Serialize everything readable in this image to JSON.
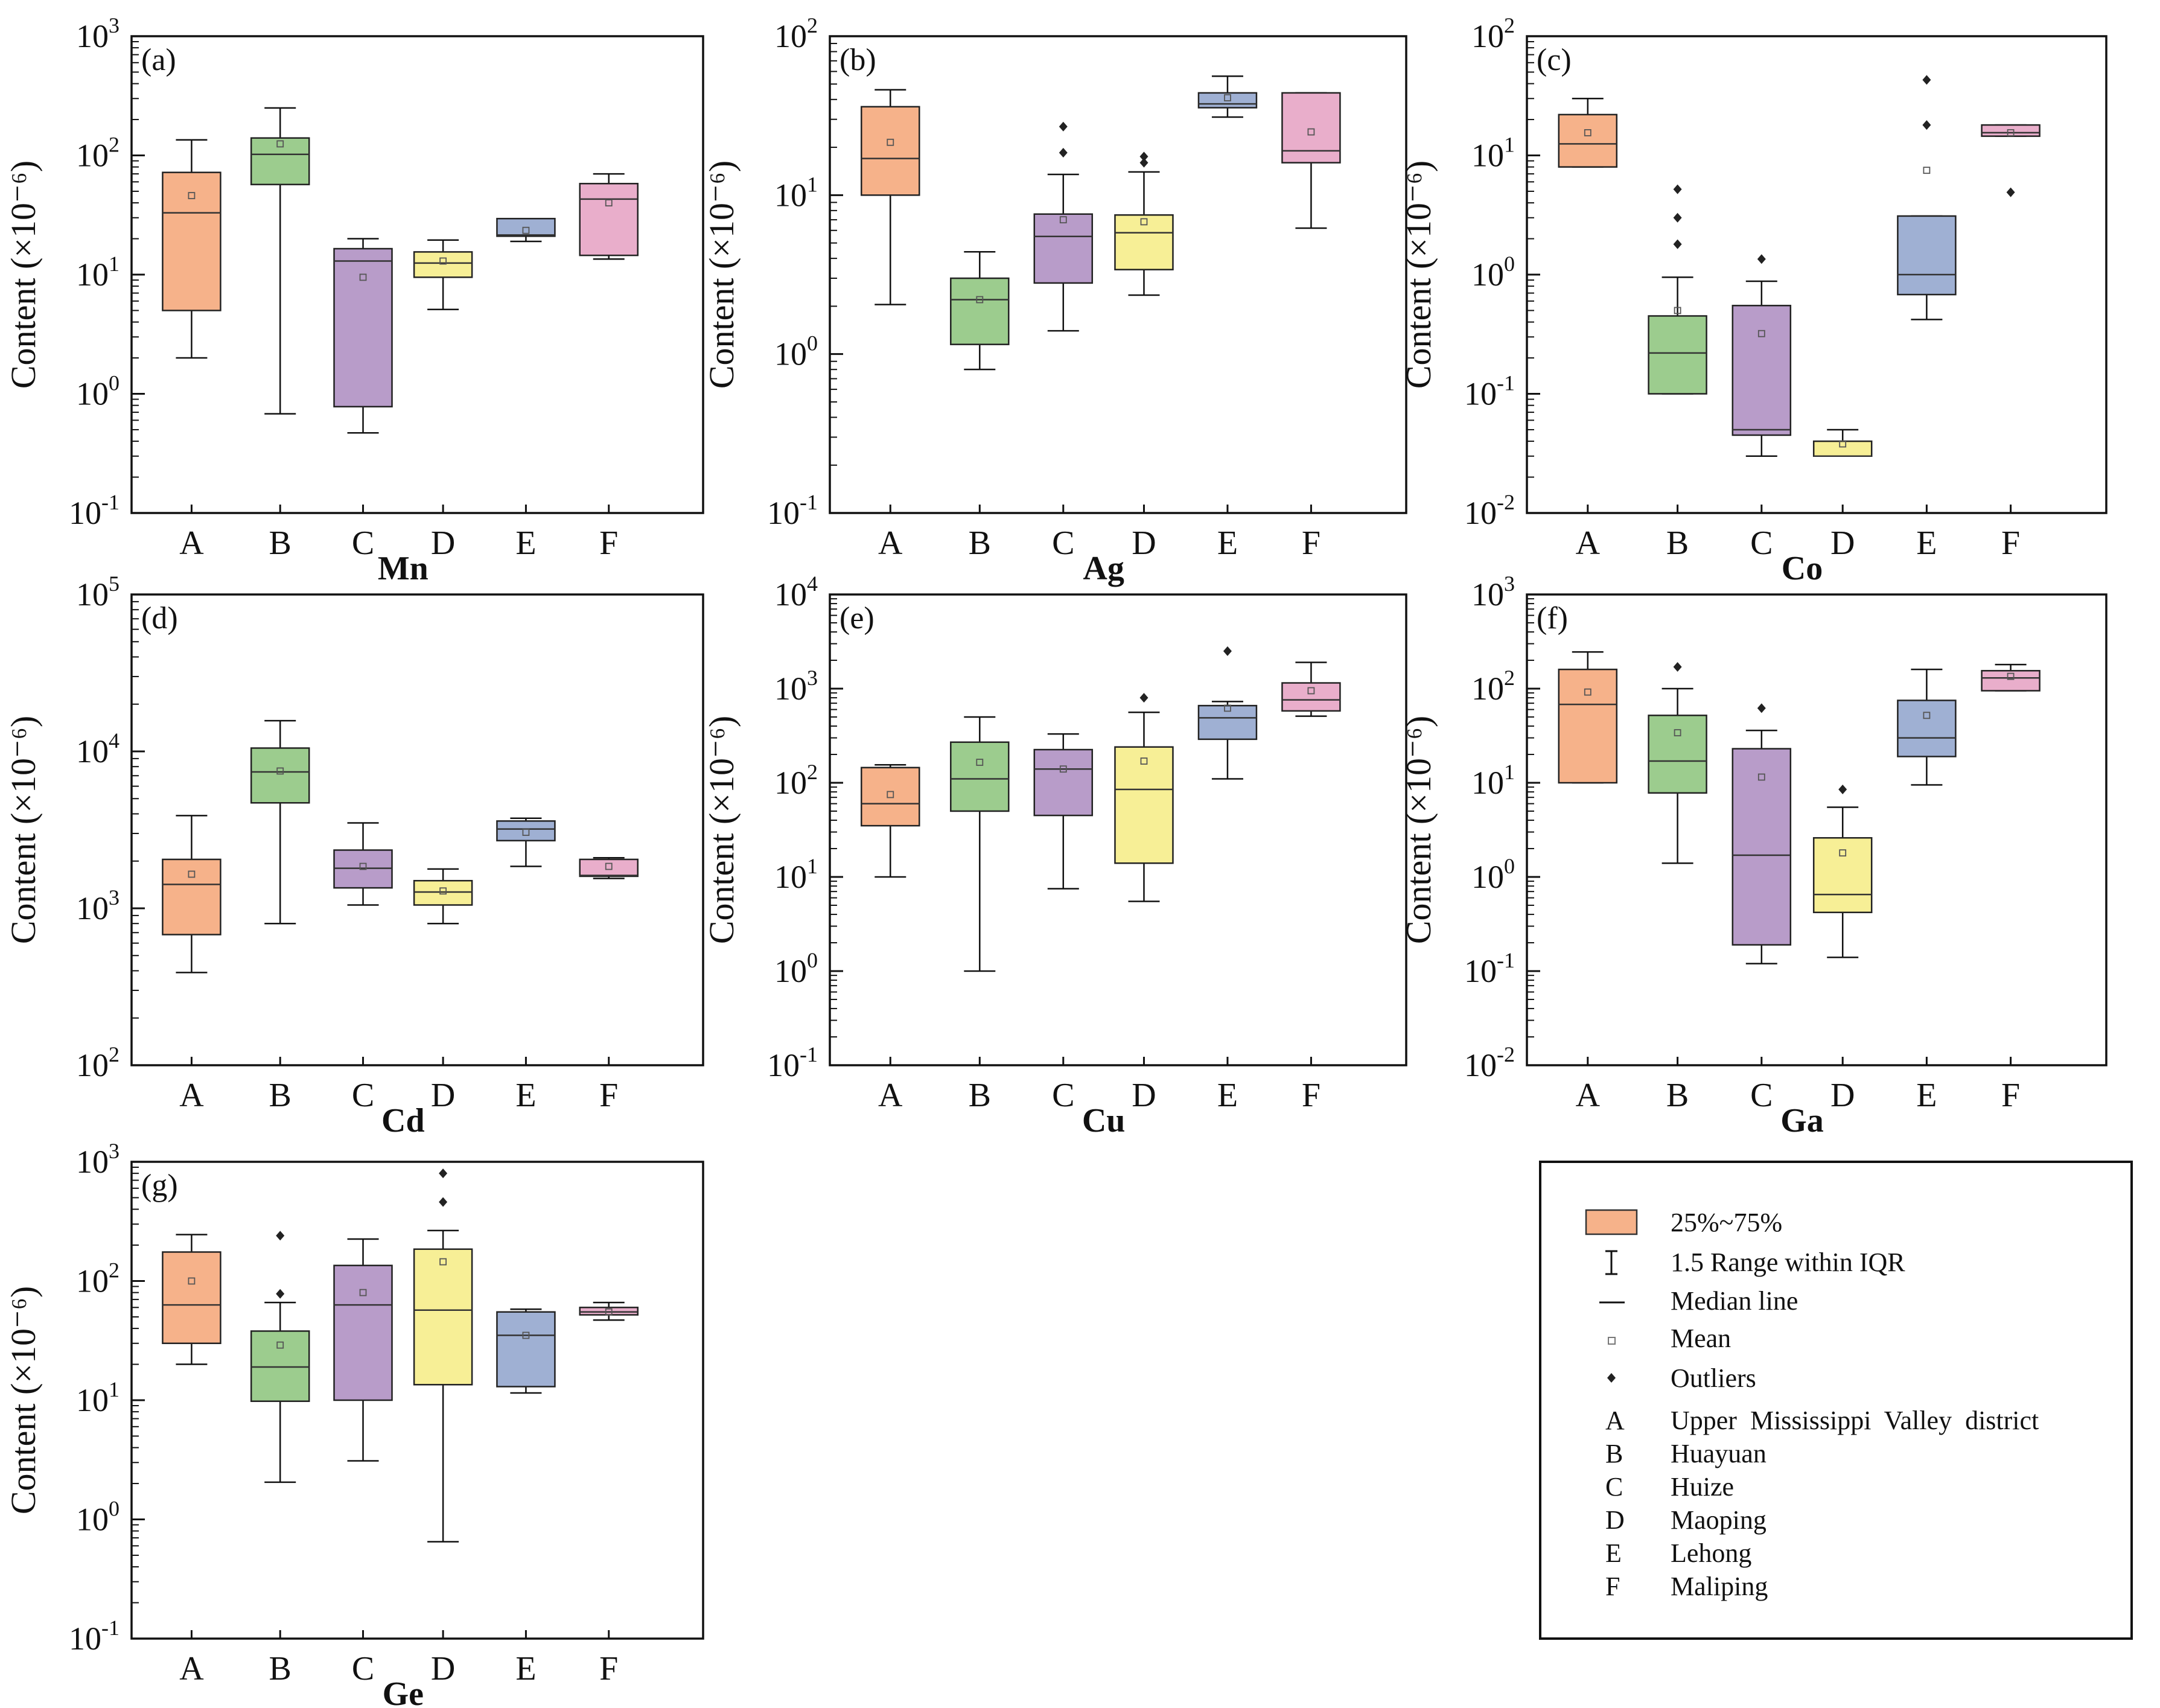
{
  "chart_data": [
    {
      "type": "box",
      "panel_label": "(a)",
      "element": "Mn",
      "ylabel": "Content (×10⁻⁶)",
      "yscale": "log",
      "ylim": [
        0.1,
        1000
      ],
      "y_ticks": [
        {
          "base": "10",
          "exp": "3",
          "value": 1000
        },
        {
          "base": "10",
          "exp": "2",
          "value": 100
        },
        {
          "base": "10",
          "exp": "1",
          "value": 10
        },
        {
          "base": "10",
          "exp": "0",
          "value": 1
        },
        {
          "base": "10",
          "exp": "-1",
          "value": 0.1
        }
      ],
      "categories": [
        "A",
        "B",
        "C",
        "D",
        "E",
        "F"
      ],
      "boxes": [
        {
          "cat": "A",
          "whisker_low": 2.0,
          "q1": 5.0,
          "median": 33,
          "q3": 72,
          "whisker_high": 135,
          "mean": 46,
          "outliers": []
        },
        {
          "cat": "B",
          "whisker_low": 0.68,
          "q1": 57,
          "median": 102,
          "q3": 140,
          "whisker_high": 250,
          "mean": 125,
          "outliers": []
        },
        {
          "cat": "C",
          "whisker_low": 0.47,
          "q1": 0.78,
          "median": 13,
          "q3": 16.5,
          "whisker_high": 20,
          "mean": 9.5,
          "outliers": []
        },
        {
          "cat": "D",
          "whisker_low": 5.1,
          "q1": 9.5,
          "median": 12.5,
          "q3": 15.5,
          "whisker_high": 19.5,
          "mean": 13,
          "outliers": []
        },
        {
          "cat": "E",
          "whisker_low": 19,
          "q1": 21,
          "median": 21.5,
          "q3": 29.5,
          "whisker_high": 29.5,
          "mean": 23.5,
          "outliers": []
        },
        {
          "cat": "F",
          "whisker_low": 13.5,
          "q1": 14.5,
          "median": 43,
          "q3": 58,
          "whisker_high": 70,
          "mean": 40,
          "outliers": []
        }
      ]
    },
    {
      "type": "box",
      "panel_label": "(b)",
      "element": "Ag",
      "ylabel": "Content (×10⁻⁶)",
      "yscale": "log",
      "ylim": [
        0.1,
        100
      ],
      "y_ticks": [
        {
          "base": "10",
          "exp": "2",
          "value": 100
        },
        {
          "base": "10",
          "exp": "1",
          "value": 10
        },
        {
          "base": "10",
          "exp": "0",
          "value": 1
        },
        {
          "base": "10",
          "exp": "-1",
          "value": 0.1
        }
      ],
      "categories": [
        "A",
        "B",
        "C",
        "D",
        "E",
        "F"
      ],
      "boxes": [
        {
          "cat": "A",
          "whisker_low": 2.05,
          "q1": 10,
          "median": 17,
          "q3": 36,
          "whisker_high": 46,
          "mean": 21.5,
          "outliers": []
        },
        {
          "cat": "B",
          "whisker_low": 0.8,
          "q1": 1.15,
          "median": 2.2,
          "q3": 3.0,
          "whisker_high": 4.4,
          "mean": 2.2,
          "outliers": []
        },
        {
          "cat": "C",
          "whisker_low": 1.4,
          "q1": 2.8,
          "median": 5.5,
          "q3": 7.6,
          "whisker_high": 13.5,
          "mean": 7.0,
          "outliers": [
            18.5,
            27
          ]
        },
        {
          "cat": "D",
          "whisker_low": 2.35,
          "q1": 3.4,
          "median": 5.8,
          "q3": 7.5,
          "whisker_high": 14,
          "mean": 6.8,
          "outliers": [
            16,
            17.5
          ]
        },
        {
          "cat": "E",
          "whisker_low": 31,
          "q1": 35.5,
          "median": 37.5,
          "q3": 44,
          "whisker_high": 56,
          "mean": 41,
          "outliers": []
        },
        {
          "cat": "F",
          "whisker_low": 6.2,
          "q1": 16,
          "median": 19,
          "q3": 44,
          "whisker_high": 44,
          "mean": 25,
          "outliers": []
        }
      ]
    },
    {
      "type": "box",
      "panel_label": "(c)",
      "element": "Co",
      "ylabel": "Content (×10⁻⁶)",
      "yscale": "log",
      "ylim": [
        0.01,
        100
      ],
      "y_ticks": [
        {
          "base": "10",
          "exp": "2",
          "value": 100
        },
        {
          "base": "10",
          "exp": "1",
          "value": 10
        },
        {
          "base": "10",
          "exp": "0",
          "value": 1
        },
        {
          "base": "10",
          "exp": "-1",
          "value": 0.1
        },
        {
          "base": "10",
          "exp": "-2",
          "value": 0.01
        }
      ],
      "categories": [
        "A",
        "B",
        "C",
        "D",
        "E",
        "F"
      ],
      "boxes": [
        {
          "cat": "A",
          "whisker_low": 8.0,
          "q1": 8.0,
          "median": 12.5,
          "q3": 22,
          "whisker_high": 30,
          "mean": 15.5,
          "outliers": []
        },
        {
          "cat": "B",
          "whisker_low": 0.1,
          "q1": 0.1,
          "median": 0.22,
          "q3": 0.45,
          "whisker_high": 0.95,
          "mean": 0.5,
          "outliers": [
            1.8,
            3.0,
            5.2
          ]
        },
        {
          "cat": "C",
          "whisker_low": 0.03,
          "q1": 0.045,
          "median": 0.05,
          "q3": 0.55,
          "whisker_high": 0.88,
          "mean": 0.32,
          "outliers": [
            1.35
          ]
        },
        {
          "cat": "D",
          "whisker_low": 0.03,
          "q1": 0.03,
          "median": 0.03,
          "q3": 0.04,
          "whisker_high": 0.05,
          "mean": 0.038,
          "outliers": []
        },
        {
          "cat": "E",
          "whisker_low": 0.42,
          "q1": 0.68,
          "median": 1.0,
          "q3": 3.1,
          "whisker_high": 3.1,
          "mean": 7.5,
          "outliers": [
            18,
            43
          ]
        },
        {
          "cat": "F",
          "whisker_low": 14.5,
          "q1": 14.5,
          "median": 15.5,
          "q3": 18,
          "whisker_high": 18,
          "mean": 15.5,
          "outliers": [
            4.9
          ]
        }
      ]
    },
    {
      "type": "box",
      "panel_label": "(d)",
      "element": "Cd",
      "ylabel": "Content (×10⁻⁶)",
      "yscale": "log",
      "ylim": [
        100,
        100000
      ],
      "y_ticks": [
        {
          "base": "10",
          "exp": "5",
          "value": 100000
        },
        {
          "base": "10",
          "exp": "4",
          "value": 10000
        },
        {
          "base": "10",
          "exp": "3",
          "value": 1000
        },
        {
          "base": "10",
          "exp": "2",
          "value": 100
        }
      ],
      "categories": [
        "A",
        "B",
        "C",
        "D",
        "E",
        "F"
      ],
      "boxes": [
        {
          "cat": "A",
          "whisker_low": 390,
          "q1": 680,
          "median": 1420,
          "q3": 2050,
          "whisker_high": 3900,
          "mean": 1650,
          "outliers": []
        },
        {
          "cat": "B",
          "whisker_low": 800,
          "q1": 4700,
          "median": 7400,
          "q3": 10500,
          "whisker_high": 15700,
          "mean": 7500,
          "outliers": []
        },
        {
          "cat": "C",
          "whisker_low": 1050,
          "q1": 1350,
          "median": 1800,
          "q3": 2350,
          "whisker_high": 3500,
          "mean": 1850,
          "outliers": []
        },
        {
          "cat": "D",
          "whisker_low": 800,
          "q1": 1050,
          "median": 1270,
          "q3": 1500,
          "whisker_high": 1780,
          "mean": 1290,
          "outliers": []
        },
        {
          "cat": "E",
          "whisker_low": 1850,
          "q1": 2700,
          "median": 3200,
          "q3": 3600,
          "whisker_high": 3750,
          "mean": 3050,
          "outliers": []
        },
        {
          "cat": "F",
          "whisker_low": 1550,
          "q1": 1600,
          "median": 1620,
          "q3": 2050,
          "whisker_high": 2100,
          "mean": 1850,
          "outliers": []
        }
      ]
    },
    {
      "type": "box",
      "panel_label": "(e)",
      "element": "Cu",
      "ylabel": "Content (×10⁻⁶)",
      "yscale": "log",
      "ylim": [
        0.1,
        10000
      ],
      "y_ticks": [
        {
          "base": "10",
          "exp": "4",
          "value": 10000
        },
        {
          "base": "10",
          "exp": "3",
          "value": 1000
        },
        {
          "base": "10",
          "exp": "2",
          "value": 100
        },
        {
          "base": "10",
          "exp": "1",
          "value": 10
        },
        {
          "base": "10",
          "exp": "0",
          "value": 1
        },
        {
          "base": "10",
          "exp": "-1",
          "value": 0.1
        }
      ],
      "categories": [
        "A",
        "B",
        "C",
        "D",
        "E",
        "F"
      ],
      "boxes": [
        {
          "cat": "A",
          "whisker_low": 10,
          "q1": 35,
          "median": 60,
          "q3": 145,
          "whisker_high": 155,
          "mean": 75,
          "outliers": []
        },
        {
          "cat": "B",
          "whisker_low": 1.0,
          "q1": 50,
          "median": 110,
          "q3": 270,
          "whisker_high": 500,
          "mean": 165,
          "outliers": []
        },
        {
          "cat": "C",
          "whisker_low": 7.5,
          "q1": 45,
          "median": 140,
          "q3": 225,
          "whisker_high": 330,
          "mean": 140,
          "outliers": []
        },
        {
          "cat": "D",
          "whisker_low": 5.5,
          "q1": 14,
          "median": 85,
          "q3": 240,
          "whisker_high": 560,
          "mean": 170,
          "outliers": [
            800
          ]
        },
        {
          "cat": "E",
          "whisker_low": 110,
          "q1": 290,
          "median": 490,
          "q3": 660,
          "whisker_high": 730,
          "mean": 620,
          "outliers": [
            2500
          ]
        },
        {
          "cat": "F",
          "whisker_low": 510,
          "q1": 580,
          "median": 760,
          "q3": 1150,
          "whisker_high": 1900,
          "mean": 950,
          "outliers": []
        }
      ]
    },
    {
      "type": "box",
      "panel_label": "(f)",
      "element": "Ga",
      "ylabel": "Content (×10⁻⁶)",
      "yscale": "log",
      "ylim": [
        0.01,
        1000
      ],
      "y_ticks": [
        {
          "base": "10",
          "exp": "3",
          "value": 1000
        },
        {
          "base": "10",
          "exp": "2",
          "value": 100
        },
        {
          "base": "10",
          "exp": "1",
          "value": 10
        },
        {
          "base": "10",
          "exp": "0",
          "value": 1
        },
        {
          "base": "10",
          "exp": "-1",
          "value": 0.1
        },
        {
          "base": "10",
          "exp": "-2",
          "value": 0.01
        }
      ],
      "categories": [
        "A",
        "B",
        "C",
        "D",
        "E",
        "F"
      ],
      "boxes": [
        {
          "cat": "A",
          "whisker_low": 10,
          "q1": 10,
          "median": 68,
          "q3": 160,
          "whisker_high": 245,
          "mean": 92,
          "outliers": []
        },
        {
          "cat": "B",
          "whisker_low": 1.4,
          "q1": 7.8,
          "median": 17,
          "q3": 52,
          "whisker_high": 100,
          "mean": 34,
          "outliers": [
            170
          ]
        },
        {
          "cat": "C",
          "whisker_low": 0.12,
          "q1": 0.19,
          "median": 1.7,
          "q3": 23,
          "whisker_high": 36,
          "mean": 11.5,
          "outliers": [
            62
          ]
        },
        {
          "cat": "D",
          "whisker_low": 0.14,
          "q1": 0.42,
          "median": 0.65,
          "q3": 2.6,
          "whisker_high": 5.5,
          "mean": 1.8,
          "outliers": [
            8.5
          ]
        },
        {
          "cat": "E",
          "whisker_low": 9.5,
          "q1": 19,
          "median": 30,
          "q3": 75,
          "whisker_high": 160,
          "mean": 52,
          "outliers": []
        },
        {
          "cat": "F",
          "whisker_low": 95,
          "q1": 95,
          "median": 130,
          "q3": 155,
          "whisker_high": 180,
          "mean": 135,
          "outliers": []
        }
      ]
    },
    {
      "type": "box",
      "panel_label": "(g)",
      "element": "Ge",
      "ylabel": "Content (×10⁻⁶)",
      "yscale": "log",
      "ylim": [
        0.1,
        1000
      ],
      "y_ticks": [
        {
          "base": "10",
          "exp": "3",
          "value": 1000
        },
        {
          "base": "10",
          "exp": "2",
          "value": 100
        },
        {
          "base": "10",
          "exp": "1",
          "value": 10
        },
        {
          "base": "10",
          "exp": "0",
          "value": 1
        },
        {
          "base": "10",
          "exp": "-1",
          "value": 0.1
        }
      ],
      "categories": [
        "A",
        "B",
        "C",
        "D",
        "E",
        "F"
      ],
      "boxes": [
        {
          "cat": "A",
          "whisker_low": 20,
          "q1": 30,
          "median": 63,
          "q3": 175,
          "whisker_high": 245,
          "mean": 100,
          "outliers": []
        },
        {
          "cat": "B",
          "whisker_low": 2.05,
          "q1": 9.8,
          "median": 19,
          "q3": 38,
          "whisker_high": 66,
          "mean": 29,
          "outliers": [
            78,
            240
          ]
        },
        {
          "cat": "C",
          "whisker_low": 3.1,
          "q1": 10,
          "median": 63,
          "q3": 135,
          "whisker_high": 225,
          "mean": 80,
          "outliers": []
        },
        {
          "cat": "D",
          "whisker_low": 0.65,
          "q1": 13.5,
          "median": 57,
          "q3": 185,
          "whisker_high": 265,
          "mean": 145,
          "outliers": [
            460,
            800
          ]
        },
        {
          "cat": "E",
          "whisker_low": 11.5,
          "q1": 13,
          "median": 35,
          "q3": 55,
          "whisker_high": 58,
          "mean": 35,
          "outliers": []
        },
        {
          "cat": "F",
          "whisker_low": 47,
          "q1": 52,
          "median": 55,
          "q3": 60,
          "whisker_high": 66,
          "mean": 55,
          "outliers": []
        }
      ]
    }
  ],
  "colors": {
    "A": "#f6b28a",
    "B": "#9ccc8e",
    "C": "#b89cc9",
    "D": "#f7ef96",
    "E": "#9fb0d3",
    "F": "#e9aecb"
  },
  "legend": {
    "entries": [
      {
        "symbol": "box",
        "label": "25%~75%"
      },
      {
        "symbol": "whisker",
        "label": "1.5 Range within IQR"
      },
      {
        "symbol": "line",
        "label": "Median line"
      },
      {
        "symbol": "square",
        "label": "Mean"
      },
      {
        "symbol": "diamond",
        "label": "Outliers"
      }
    ],
    "codes": [
      {
        "code": "A",
        "name": "Upper  Mississippi  Valley  district"
      },
      {
        "code": "B",
        "name": "Huayuan"
      },
      {
        "code": "C",
        "name": "Huize"
      },
      {
        "code": "D",
        "name": "Maoping"
      },
      {
        "code": "E",
        "name": "Lehong"
      },
      {
        "code": "F",
        "name": "Maliping"
      }
    ]
  }
}
